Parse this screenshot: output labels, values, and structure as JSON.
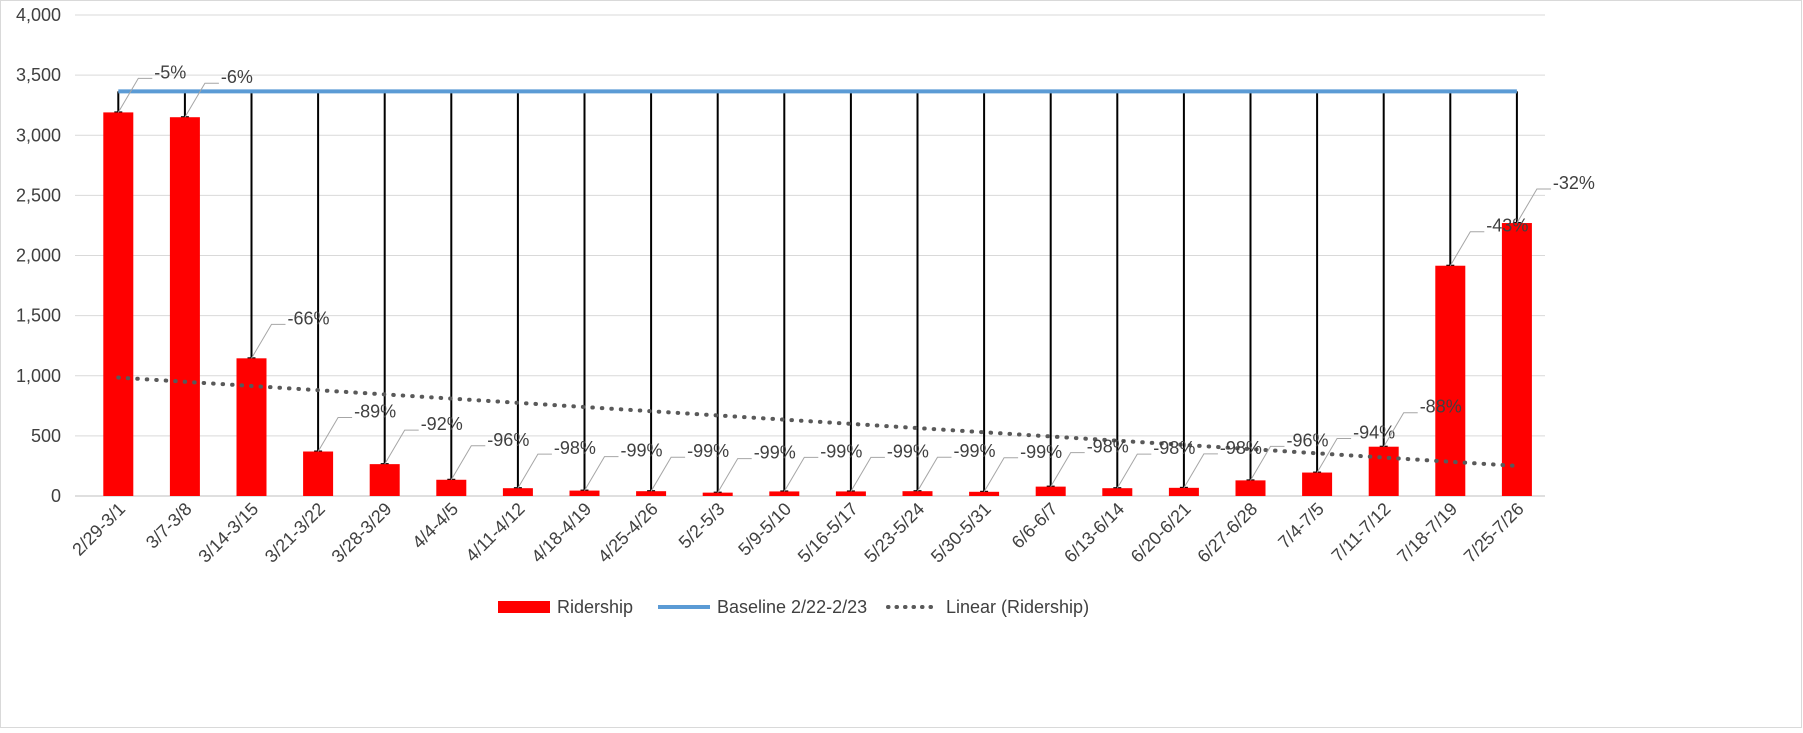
{
  "chart_data": {
    "type": "bar",
    "categories": [
      "2/29-3/1",
      "3/7-3/8",
      "3/14-3/15",
      "3/21-3/22",
      "3/28-3/29",
      "4/4-4/5",
      "4/11-4/12",
      "4/18-4/19",
      "4/25-4/26",
      "5/2-5/3",
      "5/9-5/10",
      "5/16-5/17",
      "5/23-5/24",
      "5/30-5/31",
      "6/6-6/7",
      "6/13-6/14",
      "6/20-6/21",
      "6/27-6/28",
      "7/4-7/5",
      "7/11-7/12",
      "7/18-7/19",
      "7/25-7/26"
    ],
    "series": [
      {
        "name": "Ridership",
        "type": "bar",
        "color": "#ff0000",
        "values": [
          3190,
          3150,
          1145,
          370,
          265,
          135,
          65,
          45,
          40,
          28,
          38,
          38,
          40,
          35,
          78,
          65,
          68,
          130,
          195,
          410,
          1915,
          2270
        ]
      },
      {
        "name": "Baseline 2/22-2/23",
        "type": "line",
        "color": "#5b9bd5",
        "values": [
          3365,
          3365,
          3365,
          3365,
          3365,
          3365,
          3365,
          3365,
          3365,
          3365,
          3365,
          3365,
          3365,
          3365,
          3365,
          3365,
          3365,
          3365,
          3365,
          3365,
          3365,
          3365
        ]
      },
      {
        "name": "Linear (Ridership)",
        "type": "trendline",
        "color": "#595959",
        "values": [
          985,
          950,
          915,
          880,
          845,
          810,
          775,
          740,
          705,
          670,
          635,
          600,
          565,
          530,
          495,
          460,
          425,
          390,
          355,
          320,
          285,
          250
        ]
      }
    ],
    "data_labels": [
      "-5%",
      "-6%",
      "-66%",
      "-89%",
      "-92%",
      "-96%",
      "-98%",
      "-99%",
      "-99%",
      "-99%",
      "-99%",
      "-99%",
      "-99%",
      "-99%",
      "-98%",
      "-98%",
      "-98%",
      "-96%",
      "-94%",
      "-88%",
      "-43%",
      "-32%"
    ],
    "y_ticks": [
      "0",
      "500",
      "1,000",
      "1,500",
      "2,000",
      "2,500",
      "3,000",
      "3,500",
      "4,000"
    ],
    "ylim": [
      0,
      4000
    ],
    "grid": true,
    "legend_position": "bottom",
    "title": "",
    "xlabel": "",
    "ylabel": ""
  }
}
